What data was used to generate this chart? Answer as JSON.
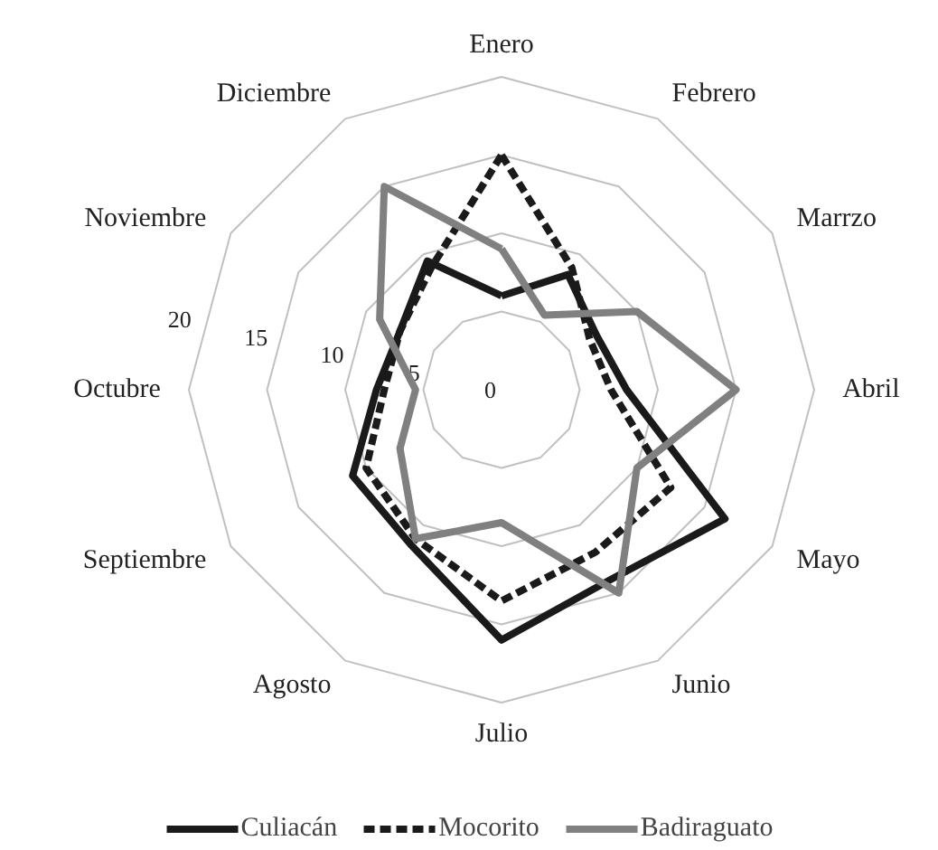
{
  "chart_data": {
    "type": "radar",
    "categories": [
      "Enero",
      "Febrero",
      "Marrzo",
      "Abril",
      "Mayo",
      "Junio",
      "Julio",
      "Agosto",
      "Septiembre",
      "Octubre",
      "Noviembre",
      "Diciembre"
    ],
    "series": [
      {
        "name": "Culiacán",
        "color": "#1a1a1a",
        "line_style": "solid",
        "values": [
          6,
          8.5,
          7,
          8,
          16.5,
          14,
          16,
          11.5,
          11,
          8,
          7.5,
          9.5
        ]
      },
      {
        "name": "Mocorito",
        "color": "#1a1a1a",
        "line_style": "dashed",
        "values": [
          15,
          9,
          6.5,
          7,
          12.5,
          12,
          13.5,
          11,
          10,
          7.5,
          7.5,
          9
        ]
      },
      {
        "name": "Badiraguato",
        "color": "#808080",
        "line_style": "solid",
        "values": [
          9,
          5.5,
          10,
          15,
          10,
          15,
          8.5,
          11,
          7.5,
          5.5,
          9,
          15
        ]
      }
    ],
    "ylim": [
      0,
      20
    ],
    "yticks": [
      0,
      5,
      10,
      15,
      20
    ],
    "grid": true,
    "legend": "bottom",
    "marker": "none"
  }
}
